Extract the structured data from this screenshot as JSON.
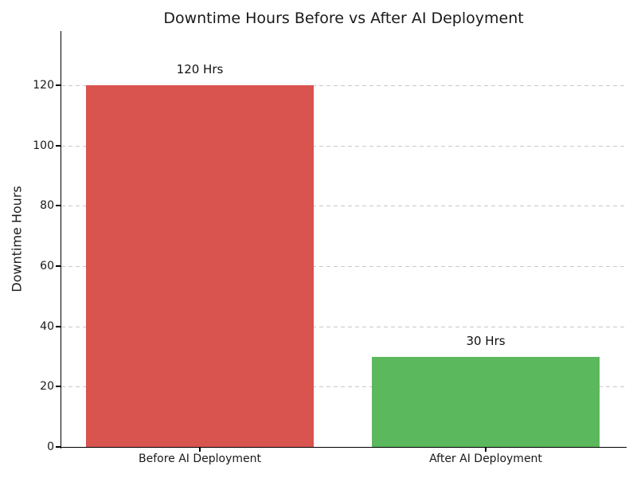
{
  "chart_data": {
    "type": "bar",
    "title": "Downtime Hours Before vs After AI Deployment",
    "xlabel": "",
    "ylabel": "Downtime Hours",
    "categories": [
      "Before AI Deployment",
      "After AI Deployment"
    ],
    "values": [
      120,
      30
    ],
    "bar_labels": [
      "120 Hrs",
      "30 Hrs"
    ],
    "bar_colors": [
      "#d9534f",
      "#5cb85c"
    ],
    "ylim": [
      0,
      138
    ],
    "yticks": [
      0,
      20,
      40,
      60,
      80,
      100,
      120
    ],
    "grid": {
      "axis": "y",
      "style": "dashed",
      "color": "#c8c8c8"
    },
    "legend": "none",
    "background": "#ffffff",
    "spine_color": "#000000",
    "text_color": "#1a1a1a"
  }
}
